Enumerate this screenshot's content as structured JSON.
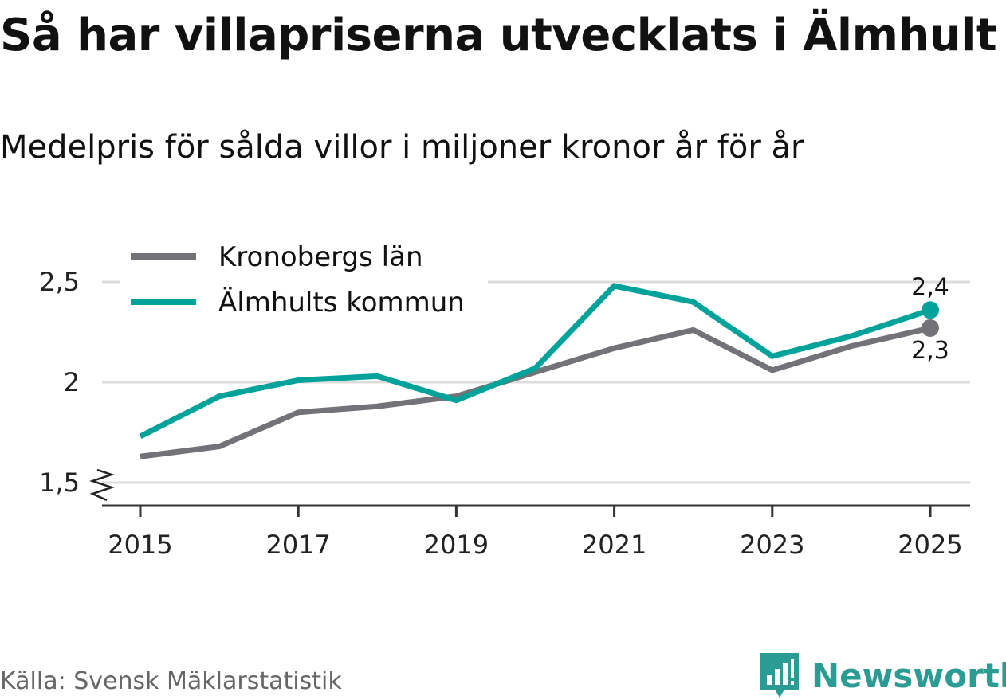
{
  "title": "Så har villapriserna utvecklats i Älmhult",
  "subtitle": "Medelpris för sålda villor i miljoner kronor år för år",
  "source": "Källa: Svensk Mäklarstatistik",
  "brand": {
    "name": "Newsworthy",
    "color": "#2b9c93"
  },
  "chart_data": {
    "type": "line",
    "x": [
      2015,
      2016,
      2017,
      2018,
      2019,
      2020,
      2021,
      2022,
      2023,
      2024,
      2025
    ],
    "x_tick_labels": [
      "2015",
      "2017",
      "2019",
      "2021",
      "2023",
      "2025"
    ],
    "y_tick_labels": [
      "1,5",
      "2",
      "2,5"
    ],
    "y_ticks": [
      1.5,
      2.0,
      2.5
    ],
    "ylim": [
      1.5,
      2.5
    ],
    "axis_break": true,
    "grid": true,
    "legend_position": "top-left",
    "series": [
      {
        "name": "Kronobergs län",
        "color": "#737278",
        "values": [
          1.63,
          1.68,
          1.85,
          1.88,
          1.93,
          2.05,
          2.17,
          2.26,
          2.06,
          2.18,
          2.27
        ],
        "end_label": "2,3"
      },
      {
        "name": "Älmhults kommun",
        "color": "#00a29a",
        "values": [
          1.73,
          1.93,
          2.01,
          2.03,
          1.91,
          2.07,
          2.48,
          2.4,
          2.13,
          2.23,
          2.36
        ],
        "end_label": "2,4"
      }
    ]
  }
}
